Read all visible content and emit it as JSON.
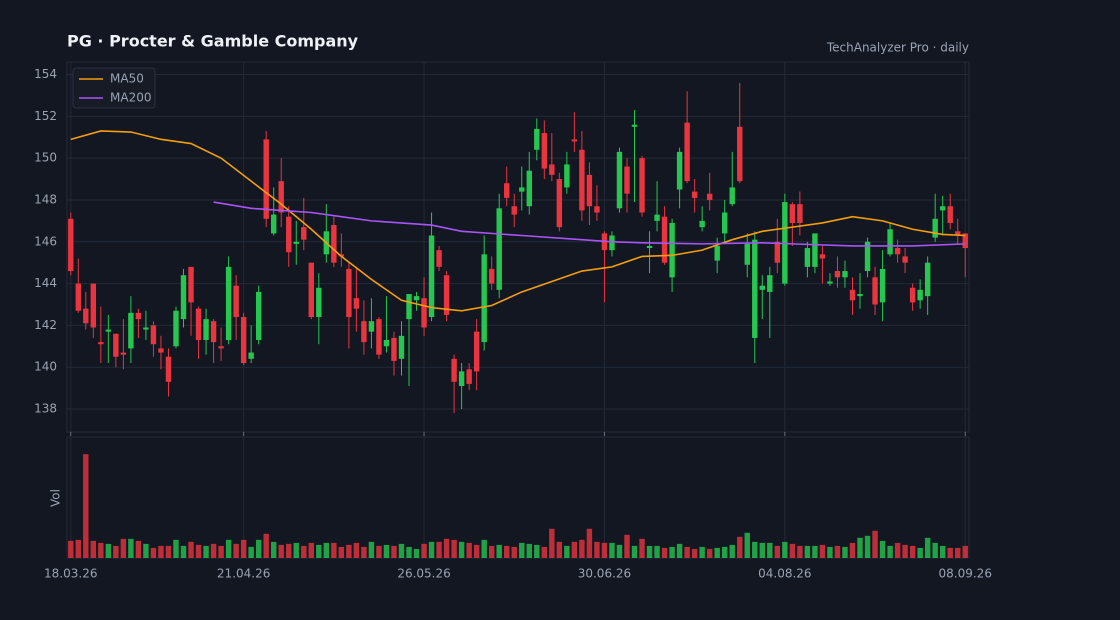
{
  "chart_data": {
    "type": "candlestick",
    "title": "PG  ·  Procter & Gamble Company",
    "subtitle": "TechAnalyzer Pro · daily",
    "volume_label": "Vol",
    "up_color": "#26c650",
    "down_color": "#e8353f",
    "grid": true,
    "legend": "upper left",
    "xlim": [
      -0.5,
      119.5
    ],
    "xticks": [
      {
        "value": 0,
        "label": "18.03.26"
      },
      {
        "value": 23,
        "label": "21.04.26"
      },
      {
        "value": 47,
        "label": "26.05.26"
      },
      {
        "value": 71,
        "label": "30.06.26"
      },
      {
        "value": 95,
        "label": "04.08.26"
      },
      {
        "value": 119,
        "label": "08.09.26"
      }
    ],
    "ylim": [
      136.9,
      154.6
    ],
    "yticks": [
      138,
      140,
      142,
      144,
      146,
      148,
      150,
      152,
      154
    ],
    "vlim": [
      0,
      12
    ],
    "open": [
      147.1,
      144.0,
      142.8,
      144.0,
      141.2,
      141.7,
      141.6,
      140.7,
      140.9,
      142.6,
      141.8,
      142.0,
      140.9,
      140.5,
      141.0,
      142.3,
      144.8,
      142.8,
      141.3,
      142.2,
      141.0,
      141.3,
      143.9,
      142.4,
      140.4,
      141.3,
      150.9,
      146.4,
      148.9,
      147.2,
      145.9,
      146.7,
      145.0,
      142.4,
      145.4,
      146.8,
      145.4,
      144.7,
      143.3,
      142.2,
      141.7,
      142.3,
      141.0,
      141.4,
      140.4,
      142.3,
      143.2,
      143.3,
      142.4,
      145.6,
      144.4,
      140.4,
      139.1,
      139.9,
      141.7,
      141.2,
      144.7,
      143.7,
      148.8,
      147.7,
      148.4,
      147.7,
      150.4,
      151.2,
      149.7,
      149.0,
      148.6,
      150.9,
      150.4,
      149.2,
      147.7,
      146.4,
      145.6,
      147.6,
      149.6,
      151.5,
      150.0,
      145.7,
      147.0,
      147.2,
      144.3,
      148.5,
      151.7,
      148.4,
      146.7,
      148.3,
      145.1,
      146.4,
      147.8,
      151.5,
      144.9,
      141.4,
      143.7,
      143.6,
      146.0,
      144.0,
      147.8,
      147.8,
      144.8,
      144.8,
      145.4,
      144.0,
      144.6,
      144.3,
      143.7,
      143.4,
      144.6,
      144.3,
      143.1,
      145.4,
      145.7,
      145.3,
      143.8,
      143.2,
      143.4,
      146.2,
      147.5,
      147.7,
      146.5,
      146.4
    ],
    "high": [
      147.4,
      145.2,
      143.6,
      144.0,
      142.9,
      142.5,
      141.6,
      142.3,
      143.4,
      142.8,
      142.7,
      142.2,
      141.5,
      140.9,
      142.9,
      144.7,
      144.8,
      142.9,
      142.8,
      142.3,
      141.9,
      145.3,
      144.4,
      142.6,
      142.0,
      143.9,
      151.3,
      148.6,
      150.0,
      147.7,
      147.0,
      148.1,
      145.0,
      144.5,
      147.8,
      147.2,
      146.4,
      145.0,
      144.8,
      143.2,
      143.3,
      142.4,
      143.4,
      141.7,
      142.2,
      143.5,
      143.6,
      144.3,
      147.4,
      145.8,
      144.6,
      140.6,
      140.2,
      140.2,
      142.3,
      146.3,
      145.3,
      148.3,
      149.6,
      148.3,
      149.6,
      150.3,
      151.9,
      151.8,
      151.2,
      149.3,
      150.3,
      152.2,
      151.3,
      149.8,
      148.7,
      146.5,
      146.5,
      150.5,
      150.0,
      152.3,
      150.1,
      146.5,
      148.9,
      147.7,
      147.1,
      150.5,
      153.2,
      149.0,
      147.7,
      149.3,
      146.2,
      148.0,
      150.3,
      153.6,
      146.4,
      146.5,
      144.4,
      144.8,
      147.1,
      148.3,
      147.9,
      148.4,
      146.0,
      146.4,
      145.8,
      144.5,
      145.3,
      145.1,
      144.3,
      144.5,
      146.2,
      144.8,
      145.6,
      146.9,
      146.1,
      145.7,
      144.0,
      144.2,
      145.3,
      148.3,
      148.2,
      148.3,
      147.1,
      146.4
    ],
    "low": [
      144.4,
      142.6,
      141.8,
      141.4,
      140.2,
      140.2,
      140.0,
      139.9,
      140.2,
      141.4,
      141.3,
      140.5,
      139.9,
      138.6,
      140.9,
      141.9,
      141.5,
      140.4,
      140.6,
      140.2,
      140.3,
      141.1,
      141.3,
      140.1,
      140.2,
      141.1,
      146.7,
      146.3,
      146.7,
      144.8,
      144.9,
      145.6,
      142.3,
      141.1,
      145.0,
      144.8,
      144.8,
      140.9,
      141.7,
      140.6,
      140.9,
      140.4,
      140.7,
      139.6,
      139.6,
      139.1,
      142.7,
      141.5,
      142.2,
      144.6,
      142.2,
      137.8,
      138.0,
      138.9,
      138.9,
      140.8,
      143.7,
      143.3,
      147.7,
      146.7,
      147.5,
      147.3,
      149.9,
      149.0,
      148.9,
      146.5,
      148.3,
      150.3,
      147.0,
      146.8,
      147.0,
      143.1,
      145.3,
      147.4,
      147.4,
      147.9,
      147.2,
      144.5,
      146.5,
      144.9,
      143.6,
      147.6,
      148.8,
      147.4,
      146.5,
      147.5,
      144.5,
      145.9,
      147.7,
      148.8,
      144.3,
      140.2,
      142.3,
      141.4,
      144.5,
      143.9,
      145.8,
      146.3,
      144.3,
      144.5,
      144.0,
      143.9,
      143.8,
      143.8,
      142.5,
      142.8,
      144.3,
      142.5,
      142.2,
      145.3,
      145.0,
      144.5,
      142.7,
      142.8,
      142.5,
      146.0,
      146.3,
      146.6,
      145.9,
      144.3
    ],
    "close": [
      144.6,
      142.7,
      142.1,
      141.9,
      141.1,
      141.8,
      140.5,
      140.6,
      142.6,
      142.3,
      141.9,
      141.1,
      140.7,
      139.3,
      142.7,
      144.4,
      143.1,
      141.3,
      142.3,
      141.2,
      140.9,
      144.8,
      142.4,
      140.2,
      140.7,
      143.6,
      147.1,
      147.3,
      147.4,
      145.5,
      146.0,
      146.1,
      142.4,
      143.8,
      146.5,
      145.0,
      145.3,
      142.4,
      142.8,
      141.2,
      142.2,
      140.6,
      141.3,
      140.3,
      141.5,
      143.5,
      143.4,
      141.9,
      146.3,
      144.8,
      142.5,
      139.3,
      139.8,
      139.2,
      139.8,
      145.4,
      144.0,
      147.6,
      148.1,
      147.3,
      148.6,
      149.4,
      151.4,
      149.5,
      149.2,
      146.7,
      149.7,
      150.8,
      147.5,
      147.7,
      147.4,
      145.6,
      146.3,
      150.3,
      148.3,
      151.6,
      147.4,
      145.8,
      147.3,
      145.0,
      146.9,
      150.3,
      148.9,
      148.1,
      147.0,
      148.0,
      145.8,
      147.4,
      148.6,
      148.9,
      145.9,
      146.1,
      143.9,
      144.4,
      145.0,
      147.9,
      146.9,
      146.9,
      145.7,
      146.4,
      145.2,
      144.1,
      144.3,
      144.6,
      143.2,
      143.5,
      146.0,
      143.0,
      144.7,
      146.6,
      145.4,
      145.0,
      143.1,
      143.7,
      145.0,
      147.1,
      147.7,
      146.9,
      146.3,
      145.7
    ],
    "volume": [
      1.7,
      1.8,
      10.3,
      1.7,
      1.5,
      1.4,
      1.2,
      1.9,
      1.9,
      1.7,
      1.4,
      1.0,
      1.2,
      1.2,
      1.8,
      1.2,
      1.6,
      1.3,
      1.2,
      1.4,
      1.2,
      1.8,
      1.4,
      1.8,
      1.1,
      1.8,
      2.4,
      1.6,
      1.3,
      1.4,
      1.5,
      1.2,
      1.5,
      1.3,
      1.5,
      1.5,
      1.1,
      1.3,
      1.5,
      1.1,
      1.6,
      1.2,
      1.3,
      1.2,
      1.4,
      1.1,
      0.9,
      1.4,
      1.6,
      1.6,
      1.9,
      1.8,
      1.6,
      1.5,
      1.3,
      1.8,
      1.2,
      1.3,
      1.2,
      1.1,
      1.5,
      1.4,
      1.3,
      1.1,
      2.9,
      1.6,
      1.2,
      1.6,
      1.8,
      2.9,
      1.6,
      1.5,
      1.5,
      1.3,
      2.3,
      1.2,
      1.9,
      1.2,
      1.2,
      1.0,
      1.1,
      1.4,
      1.1,
      0.9,
      1.1,
      0.9,
      1.0,
      1.1,
      1.3,
      2.1,
      2.5,
      1.6,
      1.5,
      1.5,
      1.2,
      1.6,
      1.4,
      1.2,
      1.2,
      1.2,
      1.3,
      1.1,
      1.2,
      1.1,
      1.5,
      2.0,
      2.2,
      2.7,
      1.7,
      1.2,
      1.5,
      1.3,
      1.2,
      1.0,
      2.0,
      1.5,
      1.2,
      1.0,
      1.0,
      1.2
    ],
    "series": [
      {
        "name": "MA50",
        "color": "#f59e0b",
        "x": [
          0,
          4,
          8,
          12,
          16,
          20,
          24,
          28,
          32,
          36,
          40,
          44,
          48,
          52,
          56,
          60,
          64,
          68,
          72,
          76,
          80,
          84,
          88,
          92,
          96,
          100,
          104,
          108,
          112,
          116,
          119
        ],
        "values": [
          150.9,
          151.3,
          151.25,
          150.9,
          150.7,
          150.0,
          148.9,
          147.8,
          146.6,
          145.3,
          144.2,
          143.2,
          142.85,
          142.7,
          142.95,
          143.6,
          144.1,
          144.6,
          144.8,
          145.3,
          145.35,
          145.6,
          146.1,
          146.5,
          146.7,
          146.9,
          147.2,
          147.0,
          146.6,
          146.35,
          146.3
        ]
      },
      {
        "name": "MA200",
        "color": "#a855f7",
        "x": [
          19,
          24,
          28,
          32,
          36,
          40,
          48,
          52,
          60,
          68,
          72,
          76,
          84,
          92,
          96,
          104,
          112,
          119
        ],
        "values": [
          147.9,
          147.6,
          147.5,
          147.4,
          147.2,
          147.0,
          146.8,
          146.5,
          146.3,
          146.1,
          146.0,
          145.95,
          145.9,
          145.95,
          145.9,
          145.8,
          145.8,
          145.9
        ]
      }
    ]
  }
}
